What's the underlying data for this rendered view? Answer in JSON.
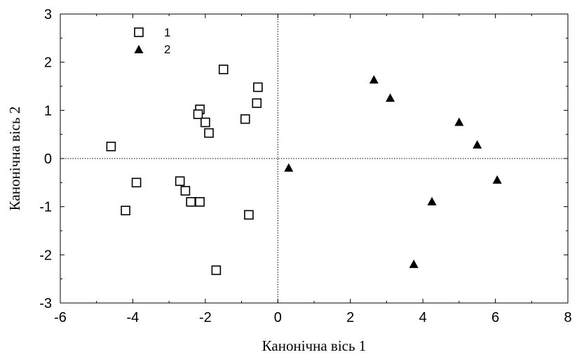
{
  "chart_data": {
    "type": "scatter",
    "xlabel": "Канонічна вісь 1",
    "ylabel": "Канонічна вісь 2",
    "xlim": [
      -6,
      8
    ],
    "ylim": [
      -3,
      3
    ],
    "xticks": [
      -6,
      -4,
      -2,
      0,
      2,
      4,
      6,
      8
    ],
    "yticks": [
      -3,
      -2,
      -1,
      0,
      1,
      2,
      3
    ],
    "reference_lines": {
      "x": 0,
      "y": 0,
      "style": "dotted"
    },
    "legend_position": "top-left",
    "series": [
      {
        "name": "1",
        "marker": "open-square",
        "points": [
          {
            "x": -4.6,
            "y": 0.25
          },
          {
            "x": -4.2,
            "y": -1.08
          },
          {
            "x": -3.9,
            "y": -0.5
          },
          {
            "x": -2.7,
            "y": -0.47
          },
          {
            "x": -2.55,
            "y": -0.67
          },
          {
            "x": -2.4,
            "y": -0.9
          },
          {
            "x": -2.15,
            "y": -0.9
          },
          {
            "x": -2.15,
            "y": 1.02
          },
          {
            "x": -2.2,
            "y": 0.92
          },
          {
            "x": -2.0,
            "y": 0.75
          },
          {
            "x": -1.9,
            "y": 0.53
          },
          {
            "x": -1.5,
            "y": 1.85
          },
          {
            "x": -1.7,
            "y": -2.32
          },
          {
            "x": -0.9,
            "y": 0.82
          },
          {
            "x": -0.8,
            "y": -1.17
          },
          {
            "x": -0.55,
            "y": 1.48
          },
          {
            "x": -0.58,
            "y": 1.15
          }
        ]
      },
      {
        "name": "2",
        "marker": "filled-triangle",
        "points": [
          {
            "x": 0.3,
            "y": -0.2
          },
          {
            "x": 2.65,
            "y": 1.63
          },
          {
            "x": 3.1,
            "y": 1.25
          },
          {
            "x": 3.75,
            "y": -2.2
          },
          {
            "x": 4.25,
            "y": -0.9
          },
          {
            "x": 5.0,
            "y": 0.75
          },
          {
            "x": 5.5,
            "y": 0.28
          },
          {
            "x": 6.05,
            "y": -0.45
          }
        ]
      }
    ]
  }
}
